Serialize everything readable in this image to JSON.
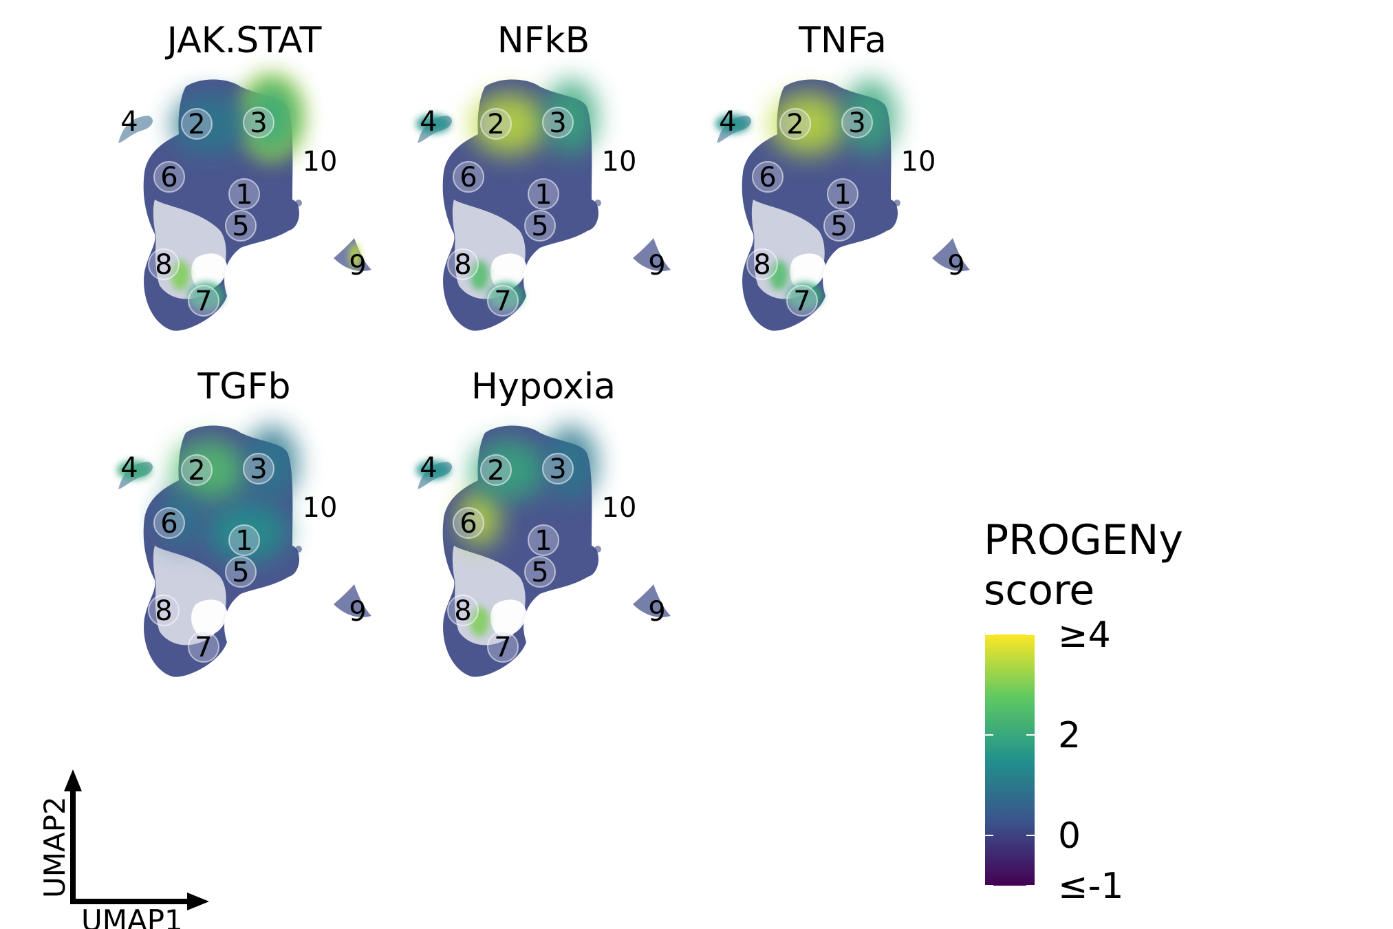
{
  "chart_data": {
    "type": "scatter",
    "panels": [
      {
        "title": "JAK.STAT",
        "hotspots": [
          {
            "cluster": "3",
            "score": 4.0
          },
          {
            "cluster": "3",
            "score": 3.0
          },
          {
            "cluster": "3",
            "score": 2.0
          },
          {
            "cluster": "9",
            "score": 3.5
          },
          {
            "cluster": "8",
            "score": 3.0
          },
          {
            "cluster": "7",
            "score": 2.0
          },
          {
            "cluster": "2",
            "score": 1.0
          }
        ]
      },
      {
        "title": "NFkB",
        "hotspots": [
          {
            "cluster": "2",
            "score": 3.5
          },
          {
            "cluster": "3",
            "score": 2.0
          },
          {
            "cluster": "8",
            "score": 2.5
          },
          {
            "cluster": "7",
            "score": 2.0
          },
          {
            "cluster": "4",
            "score": 1.5
          }
        ]
      },
      {
        "title": "TNFa",
        "hotspots": [
          {
            "cluster": "2",
            "score": 3.5
          },
          {
            "cluster": "3",
            "score": 2.0
          },
          {
            "cluster": "8",
            "score": 2.5
          },
          {
            "cluster": "7",
            "score": 2.0
          },
          {
            "cluster": "4",
            "score": 1.5
          }
        ]
      },
      {
        "title": "TGFb",
        "hotspots": [
          {
            "cluster": "2",
            "score": 2.5
          },
          {
            "cluster": "4",
            "score": 2.0
          },
          {
            "cluster": "1",
            "score": 1.5
          },
          {
            "cluster": "3",
            "score": 1.0
          },
          {
            "cluster": "6",
            "score": 1.0
          }
        ]
      },
      {
        "title": "Hypoxia",
        "hotspots": [
          {
            "cluster": "6",
            "score": 3.5
          },
          {
            "cluster": "8",
            "score": 3.0
          },
          {
            "cluster": "2",
            "score": 2.0
          },
          {
            "cluster": "4",
            "score": 1.5
          },
          {
            "cluster": "3",
            "score": 1.0
          }
        ]
      }
    ],
    "clusters": [
      "1",
      "2",
      "3",
      "4",
      "5",
      "6",
      "7",
      "8",
      "9",
      "10"
    ],
    "xlabel": "UMAP1",
    "ylabel": "UMAP2",
    "colorbar": {
      "title": "PROGENy\nscore",
      "title_line1": "PROGENy",
      "title_line2": "score",
      "min": -1,
      "max": 4,
      "ticks": [
        {
          "value": 4,
          "label": "≥4"
        },
        {
          "value": 2,
          "label": "2"
        },
        {
          "value": 0,
          "label": "0"
        },
        {
          "value": -1,
          "label": "≤-1"
        }
      ],
      "colormap": [
        "#440154",
        "#3b528b",
        "#21918c",
        "#5ec962",
        "#fde725"
      ]
    }
  }
}
